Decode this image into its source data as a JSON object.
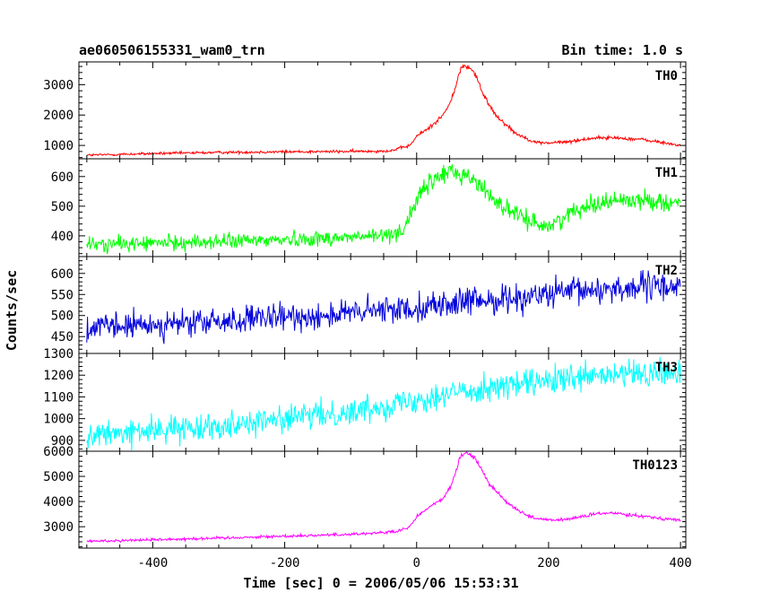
{
  "header": {
    "left_title": "ae060506155331_wam0_trn",
    "right_title": "Bin time: 1.0 s"
  },
  "chart_data": {
    "type": "line",
    "title": "ae060506155331_wam0_trn",
    "subtitle": "Bin time: 1.0 s",
    "xlabel": "Time [sec] 0 = 2006/05/06 15:53:31",
    "ylabel": "Counts/sec",
    "xlim": [
      -512,
      408
    ],
    "x_ticks": [
      -400,
      -200,
      0,
      200,
      400
    ],
    "x_range": [
      -500,
      400
    ],
    "panels": [
      {
        "name": "TH0",
        "color": "#ff0000",
        "ylim": [
          560,
          3750
        ],
        "y_ticks": [
          1000,
          2000,
          3000
        ],
        "noise": 30,
        "profile": [
          [
            -500,
            680
          ],
          [
            -400,
            730
          ],
          [
            -300,
            770
          ],
          [
            -200,
            790
          ],
          [
            -100,
            800
          ],
          [
            -40,
            820
          ],
          [
            -10,
            1000
          ],
          [
            0,
            1300
          ],
          [
            20,
            1600
          ],
          [
            40,
            2000
          ],
          [
            50,
            2350
          ],
          [
            60,
            3000
          ],
          [
            68,
            3600
          ],
          [
            80,
            3580
          ],
          [
            90,
            3300
          ],
          [
            100,
            2700
          ],
          [
            120,
            2000
          ],
          [
            150,
            1400
          ],
          [
            180,
            1100
          ],
          [
            200,
            1080
          ],
          [
            230,
            1120
          ],
          [
            270,
            1250
          ],
          [
            300,
            1250
          ],
          [
            340,
            1200
          ],
          [
            400,
            1000
          ]
        ]
      },
      {
        "name": "TH1",
        "color": "#00ff00",
        "ylim": [
          330,
          660
        ],
        "y_ticks": [
          400,
          500,
          600
        ],
        "noise": 18,
        "profile": [
          [
            -500,
            370
          ],
          [
            -300,
            380
          ],
          [
            -100,
            395
          ],
          [
            -50,
            400
          ],
          [
            -20,
            420
          ],
          [
            0,
            520
          ],
          [
            20,
            580
          ],
          [
            50,
            620
          ],
          [
            80,
            600
          ],
          [
            100,
            560
          ],
          [
            130,
            500
          ],
          [
            160,
            460
          ],
          [
            200,
            430
          ],
          [
            250,
            500
          ],
          [
            300,
            520
          ],
          [
            350,
            520
          ],
          [
            400,
            510
          ]
        ]
      },
      {
        "name": "TH2",
        "color": "#0000dd",
        "ylim": [
          410,
          640
        ],
        "y_ticks": [
          450,
          500,
          550,
          600
        ],
        "noise": 22,
        "profile": [
          [
            -500,
            470
          ],
          [
            -300,
            485
          ],
          [
            -100,
            505
          ],
          [
            0,
            520
          ],
          [
            100,
            535
          ],
          [
            200,
            550
          ],
          [
            300,
            565
          ],
          [
            400,
            570
          ]
        ]
      },
      {
        "name": "TH3",
        "color": "#00ffff",
        "ylim": [
          850,
          1300
        ],
        "y_ticks": [
          900,
          1000,
          1100,
          1200,
          1300
        ],
        "noise": 40,
        "profile": [
          [
            -500,
            920
          ],
          [
            -300,
            970
          ],
          [
            -100,
            1030
          ],
          [
            0,
            1090
          ],
          [
            100,
            1140
          ],
          [
            200,
            1170
          ],
          [
            300,
            1200
          ],
          [
            400,
            1210
          ]
        ]
      },
      {
        "name": "TH0123",
        "color": "#ff00ff",
        "ylim": [
          2150,
          6000
        ],
        "y_ticks": [
          3000,
          4000,
          5000,
          6000
        ],
        "noise": 40,
        "profile": [
          [
            -500,
            2420
          ],
          [
            -300,
            2550
          ],
          [
            -100,
            2700
          ],
          [
            -30,
            2800
          ],
          [
            -10,
            3000
          ],
          [
            0,
            3400
          ],
          [
            20,
            3800
          ],
          [
            40,
            4100
          ],
          [
            55,
            4800
          ],
          [
            65,
            5700
          ],
          [
            75,
            5950
          ],
          [
            90,
            5700
          ],
          [
            110,
            4700
          ],
          [
            140,
            3900
          ],
          [
            170,
            3400
          ],
          [
            200,
            3250
          ],
          [
            230,
            3300
          ],
          [
            270,
            3500
          ],
          [
            300,
            3550
          ],
          [
            350,
            3400
          ],
          [
            400,
            3250
          ]
        ]
      }
    ]
  }
}
